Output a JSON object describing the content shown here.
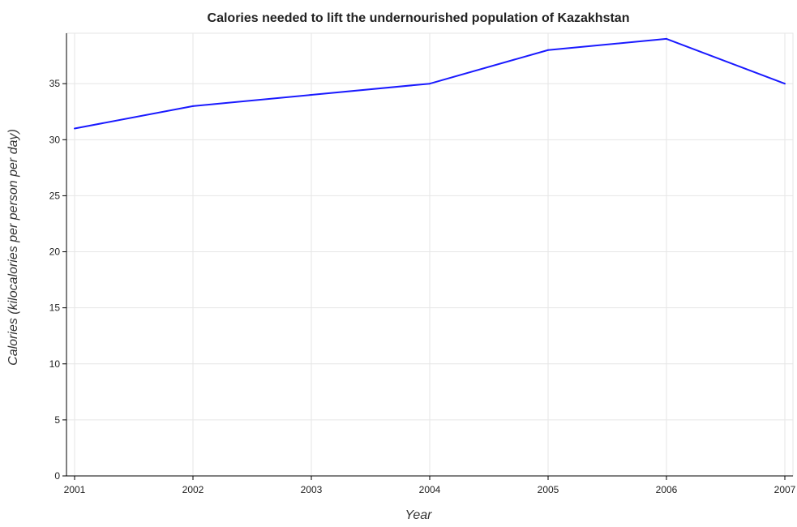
{
  "chart_data": {
    "type": "line",
    "title": "Calories needed to lift the undernourished population of Kazakhstan",
    "xlabel": "Year",
    "ylabel": "Calories (kilocalories per person per day)",
    "categories": [
      "2001",
      "2002",
      "2003",
      "2004",
      "2005",
      "2006",
      "2007"
    ],
    "series": [
      {
        "values": [
          31,
          33,
          34,
          35,
          38,
          39,
          35
        ]
      }
    ],
    "yticks": [
      "0",
      "5",
      "10",
      "15",
      "20",
      "25",
      "30",
      "35"
    ],
    "ylim": [
      0,
      39.5
    ],
    "grid": true,
    "line_color": "#1a1aff"
  }
}
